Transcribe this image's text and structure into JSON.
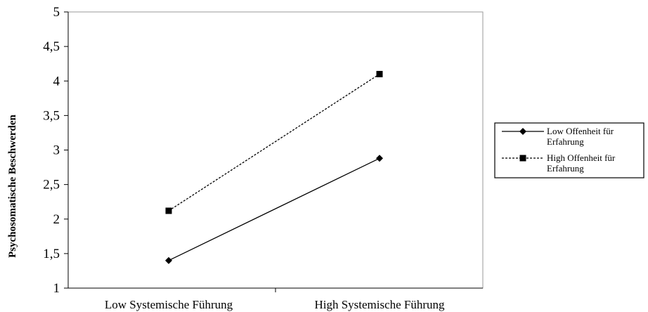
{
  "chart_data": {
    "type": "line",
    "title": "",
    "xlabel": "",
    "ylabel": "Psychosomatische Beschwerden",
    "categories": [
      "Low Systemische Führung",
      "High Systemische Führung"
    ],
    "ylim": [
      1,
      5
    ],
    "yticks": [
      "1",
      "1,5",
      "2",
      "2,5",
      "3",
      "3,5",
      "4",
      "4,5",
      "5"
    ],
    "grid": false,
    "legend_position": "right",
    "series": [
      {
        "name_lines": [
          "Low Offenheit für",
          "Erfahrung"
        ],
        "values": [
          1.4,
          2.88
        ],
        "marker": "diamond",
        "line_style": "solid",
        "color": "#000000"
      },
      {
        "name_lines": [
          "High Offenheit für",
          "Erfahrung"
        ],
        "values": [
          2.12,
          4.1
        ],
        "marker": "square",
        "line_style": "dashed",
        "color": "#000000"
      }
    ]
  }
}
